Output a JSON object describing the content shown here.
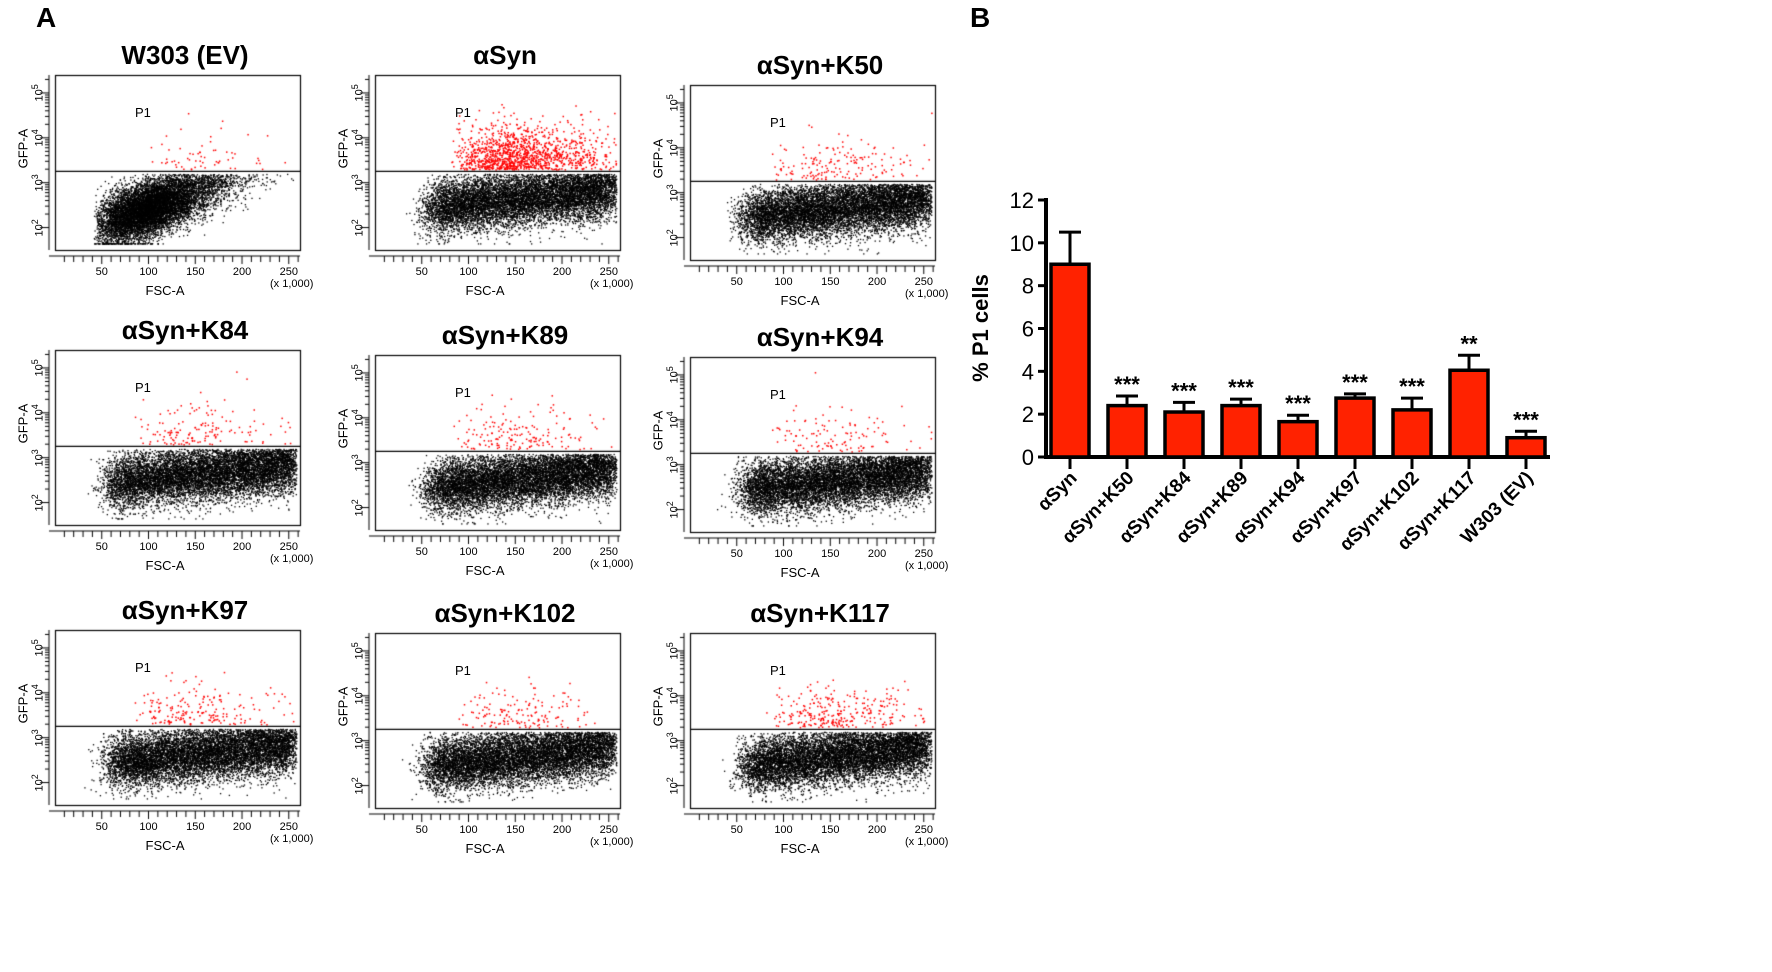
{
  "panels": {
    "a_label": "A",
    "b_label": "B"
  },
  "chart_data": [
    {
      "type": "scatter",
      "subtype": "flow-cytometry-dot-plots",
      "xlabel": "FSC-A",
      "x_multiplier": "(x 1,000)",
      "ylabel": "GFP-A",
      "gate_label": "P1",
      "x_ticks": [
        "50",
        "100",
        "150",
        "200",
        "250"
      ],
      "y_ticks": [
        "2",
        "3",
        "4",
        "5"
      ],
      "plots": [
        {
          "title": "W303 (EV)",
          "p1_percent": 0.9,
          "profile": "low"
        },
        {
          "title": "αSyn",
          "p1_percent": 9.0,
          "profile": "high"
        },
        {
          "title": "αSyn+K50",
          "p1_percent": 2.4,
          "profile": "mid"
        },
        {
          "title": "αSyn+K84",
          "p1_percent": 2.1,
          "profile": "mid"
        },
        {
          "title": "αSyn+K89",
          "p1_percent": 2.4,
          "profile": "mid"
        },
        {
          "title": "αSyn+K94",
          "p1_percent": 1.65,
          "profile": "mid"
        },
        {
          "title": "αSyn+K97",
          "p1_percent": 2.75,
          "profile": "mid"
        },
        {
          "title": "αSyn+K102",
          "p1_percent": 2.2,
          "profile": "mid"
        },
        {
          "title": "αSyn+K117",
          "p1_percent": 4.05,
          "profile": "mid"
        }
      ]
    },
    {
      "type": "bar",
      "title": "",
      "ylabel": "% P1 cells",
      "xlabel": "",
      "ylim": [
        0,
        12
      ],
      "y_ticks": [
        0,
        2,
        4,
        6,
        8,
        10,
        12
      ],
      "categories": [
        "αSyn",
        "αSyn+K50",
        "αSyn+K84",
        "αSyn+K89",
        "αSyn+K94",
        "αSyn+K97",
        "αSyn+K102",
        "αSyn+K117",
        "W303 (EV)"
      ],
      "values": [
        9.0,
        2.4,
        2.1,
        2.4,
        1.65,
        2.75,
        2.2,
        4.05,
        0.9
      ],
      "errors": [
        1.5,
        0.45,
        0.45,
        0.3,
        0.3,
        0.2,
        0.55,
        0.7,
        0.3
      ],
      "significance": [
        "",
        "***",
        "***",
        "***",
        "***",
        "***",
        "***",
        "**",
        "***"
      ],
      "bar_color": "#ff2200"
    }
  ]
}
